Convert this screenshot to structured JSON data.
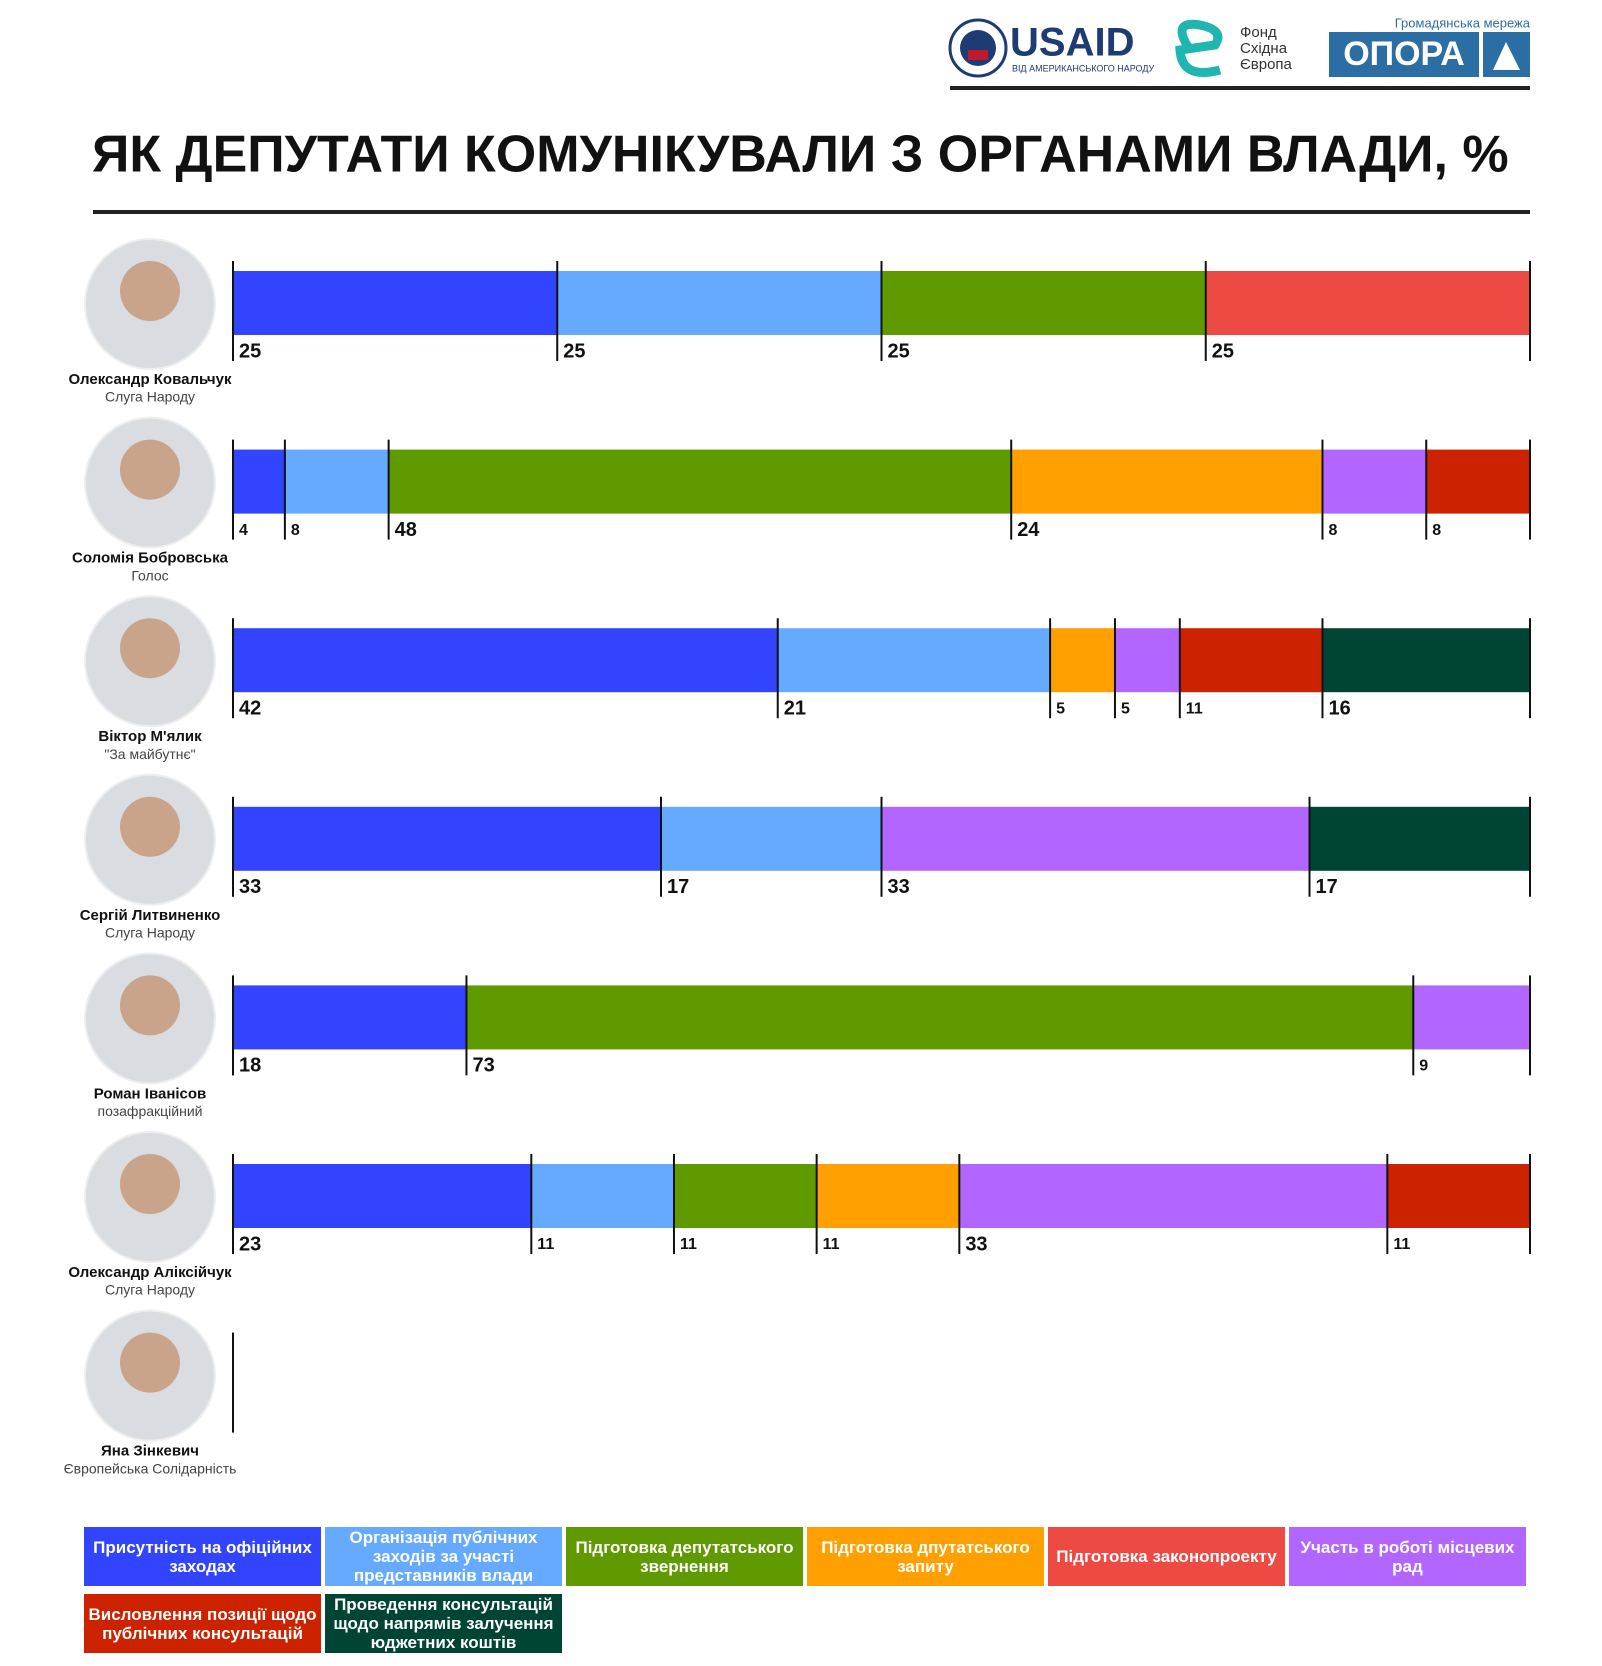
{
  "header": {
    "usaid": "USAID",
    "usaid_sub": "ВІД АМЕРИКАНСЬКОГО НАРОДУ",
    "fund": [
      "Фонд",
      "Східна",
      "Європа"
    ],
    "network": "Громадянська мережа",
    "opora": "ОПОРА"
  },
  "chart_data": {
    "type": "stacked-bar",
    "title": "ЯК ДЕПУТАТИ КОМУНІКУВАЛИ З ОРГАНАМИ ВЛАДИ, %",
    "categories": [
      "Олександр Ковальчук",
      "Соломія Бобровська",
      "Віктор М'ялик",
      "Сергій Литвиненко",
      "Роман Іванісов",
      "Олександр Аліксійчук",
      "Яна Зінкевич"
    ],
    "parties": [
      "Слуга Народу",
      "Голос",
      "\"За майбутнє\"",
      "Слуга Народу",
      "позафракційний",
      "Слуга Народу",
      "Європейська Солідарність"
    ],
    "xlim": [
      0,
      100
    ],
    "series": [
      {
        "name": "Присутність на офіційних заходах",
        "color": "#3344ff",
        "values": [
          25,
          4,
          42,
          33,
          18,
          23,
          null
        ]
      },
      {
        "name": "Організація публічних заходів за участі представників влади",
        "color": "#66aaff",
        "values": [
          25,
          8,
          21,
          17,
          null,
          11,
          null
        ]
      },
      {
        "name": "Підготовка депутатського звернення",
        "color": "#5e9a00",
        "values": [
          25,
          48,
          null,
          null,
          73,
          11,
          null
        ]
      },
      {
        "name": "Підготовка дпутатського запиту",
        "color": "#ffa000",
        "values": [
          null,
          24,
          5,
          null,
          null,
          11,
          null
        ]
      },
      {
        "name": "Підготовка законопроекту",
        "color": "#ee4a44",
        "values": [
          25,
          null,
          null,
          null,
          null,
          null,
          null
        ]
      },
      {
        "name": "Участь в роботі місцевих рад",
        "color": "#b266ff",
        "values": [
          null,
          8,
          5,
          33,
          9,
          33,
          null
        ]
      },
      {
        "name": "Висловлення позиції щодо публічних консультацій",
        "color": "#cc2200",
        "values": [
          null,
          8,
          11,
          null,
          null,
          11,
          null
        ]
      },
      {
        "name": "Проведення консультацій щодо напрямів залучення юджетних коштів",
        "color": "#004433",
        "values": [
          null,
          null,
          16,
          17,
          null,
          null,
          null
        ]
      }
    ]
  }
}
